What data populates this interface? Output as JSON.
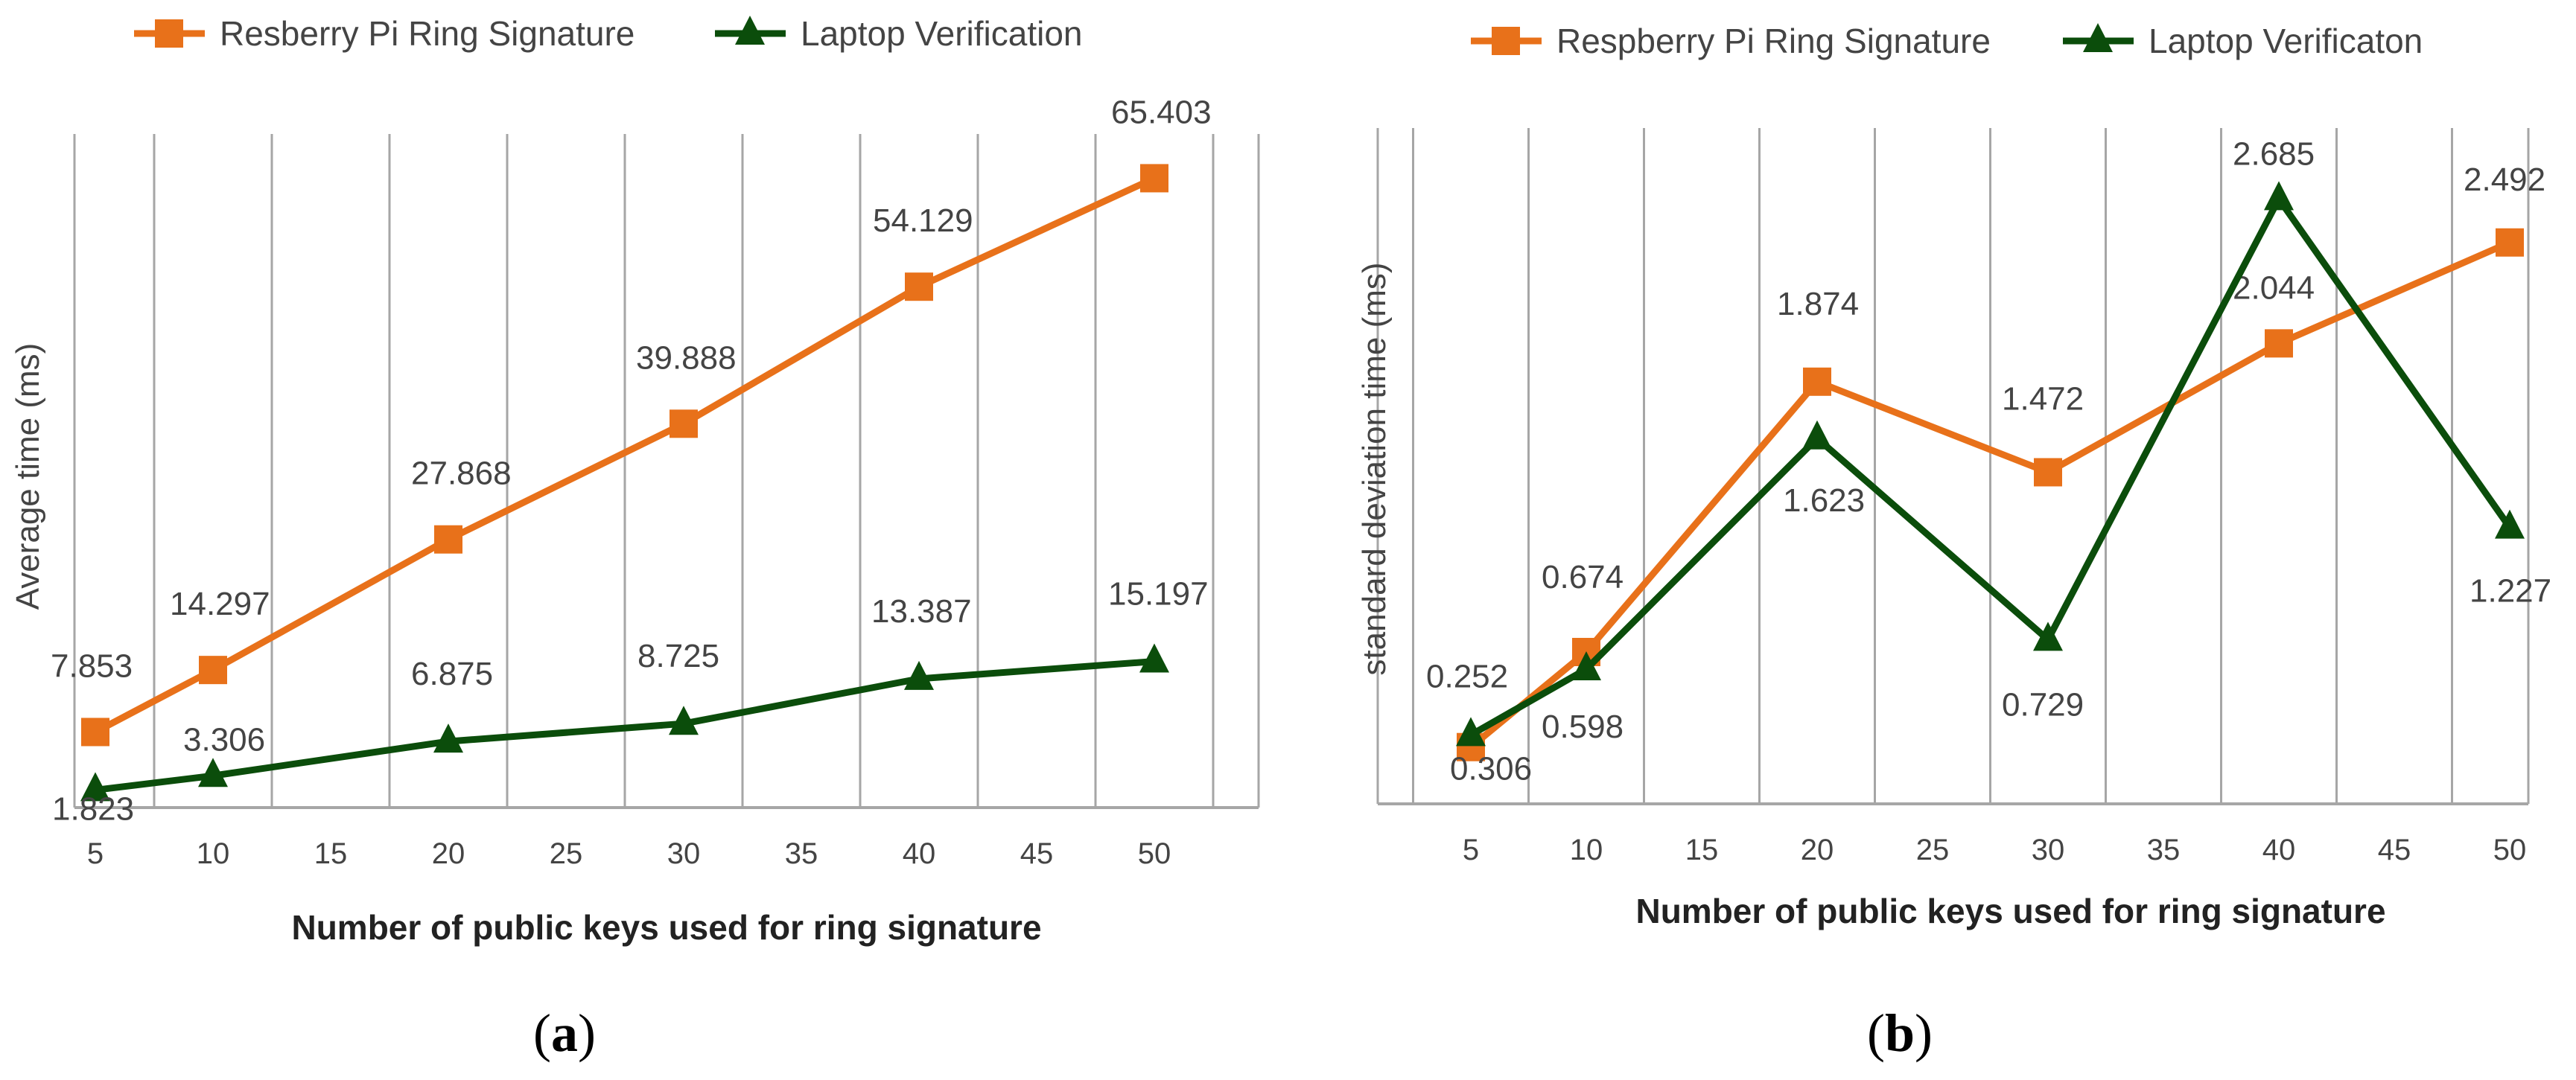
{
  "colors": {
    "sig": "#e8711a",
    "ver": "#0b4d0b",
    "grid": "#a6a6a6",
    "axis": "#a6a6a6"
  },
  "chart_data": [
    {
      "panel": "a",
      "type": "line",
      "caption_letter": "a",
      "x": [
        5,
        10,
        20,
        30,
        40,
        50
      ],
      "xticks": [
        "5",
        "10",
        "15",
        "20",
        "25",
        "30",
        "35",
        "40",
        "45",
        "50"
      ],
      "xlabel": "Number of public keys used for ring signature",
      "ylabel": "Average time (ms)",
      "ylim": [
        0,
        70
      ],
      "grid": true,
      "legend": "top",
      "series": [
        {
          "name": "Resberry Pi Ring Signature",
          "marker": "square",
          "color": "#e8711a",
          "values": [
            7.853,
            14.297,
            27.868,
            39.888,
            54.129,
            65.403
          ],
          "labels": [
            "7.853",
            "14.297",
            "27.868",
            "39.888",
            "54.129",
            "65.403"
          ]
        },
        {
          "name": "Laptop Verification",
          "marker": "triangle",
          "color": "#0b4d0b",
          "values": [
            1.823,
            3.306,
            6.875,
            8.725,
            13.387,
            15.197
          ],
          "labels": [
            "1.823",
            "3.306",
            "6.875",
            "8.725",
            "13.387",
            "15.197"
          ]
        }
      ]
    },
    {
      "panel": "b",
      "type": "line",
      "caption_letter": "b",
      "x": [
        5,
        10,
        20,
        30,
        40,
        50
      ],
      "xticks": [
        "5",
        "10",
        "15",
        "20",
        "25",
        "30",
        "35",
        "40",
        "45",
        "50"
      ],
      "xlabel": "Number of public keys used for ring signature",
      "ylabel": "standard deviation time (ms)",
      "ylim": [
        0,
        3
      ],
      "grid": true,
      "legend": "top",
      "series": [
        {
          "name": "Respberry Pi Ring Signature",
          "marker": "square",
          "color": "#e8711a",
          "values": [
            0.252,
            0.674,
            1.874,
            1.472,
            2.044,
            2.492
          ],
          "labels": [
            "0.252",
            "0.674",
            "1.874",
            "1.472",
            "2.044",
            "2.492"
          ]
        },
        {
          "name": "Laptop Verificaton",
          "marker": "triangle",
          "color": "#0b4d0b",
          "values": [
            0.306,
            0.598,
            1.623,
            0.729,
            2.685,
            1.227
          ],
          "labels": [
            "0.306",
            "0.598",
            "1.623",
            "0.729",
            "2.685",
            "1.227"
          ]
        }
      ]
    }
  ]
}
